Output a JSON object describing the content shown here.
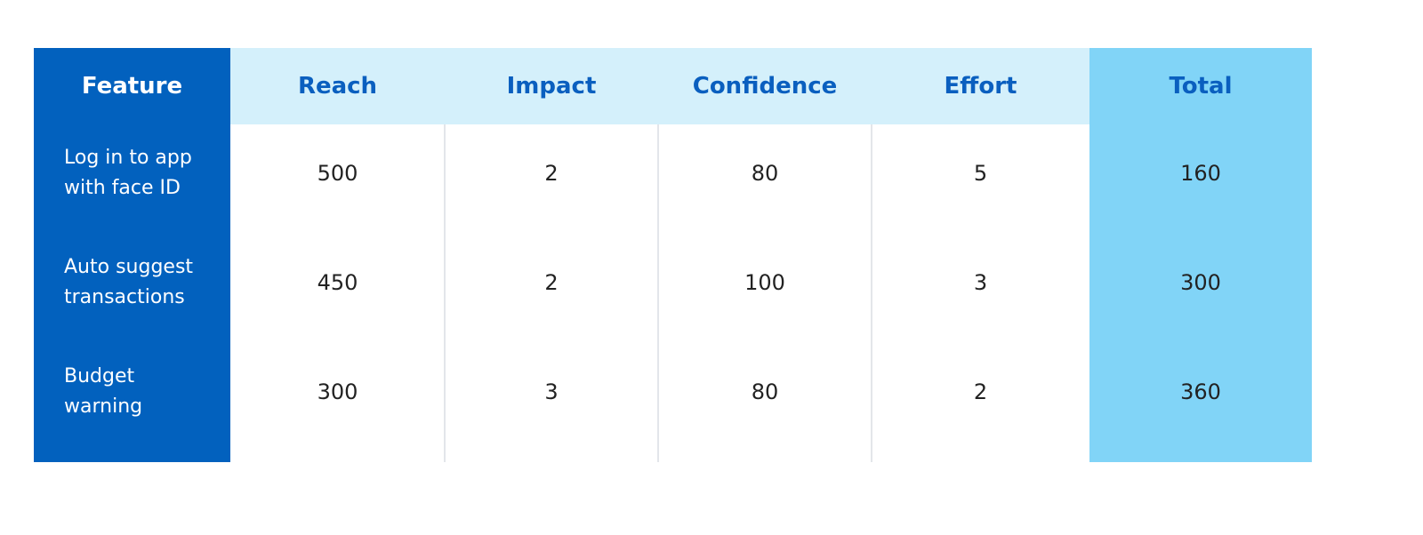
{
  "table": {
    "headers": [
      "Feature",
      "Reach",
      "Impact",
      "Confidence",
      "Effort",
      "Total"
    ],
    "rows": [
      [
        [
          "Log in to app",
          "with face ID"
        ],
        500,
        2,
        80,
        5,
        160
      ],
      [
        [
          "Auto suggest",
          "transactions"
        ],
        450,
        2,
        100,
        3,
        300
      ],
      [
        [
          "Budget",
          "warning"
        ],
        300,
        3,
        80,
        2,
        360
      ]
    ]
  }
}
